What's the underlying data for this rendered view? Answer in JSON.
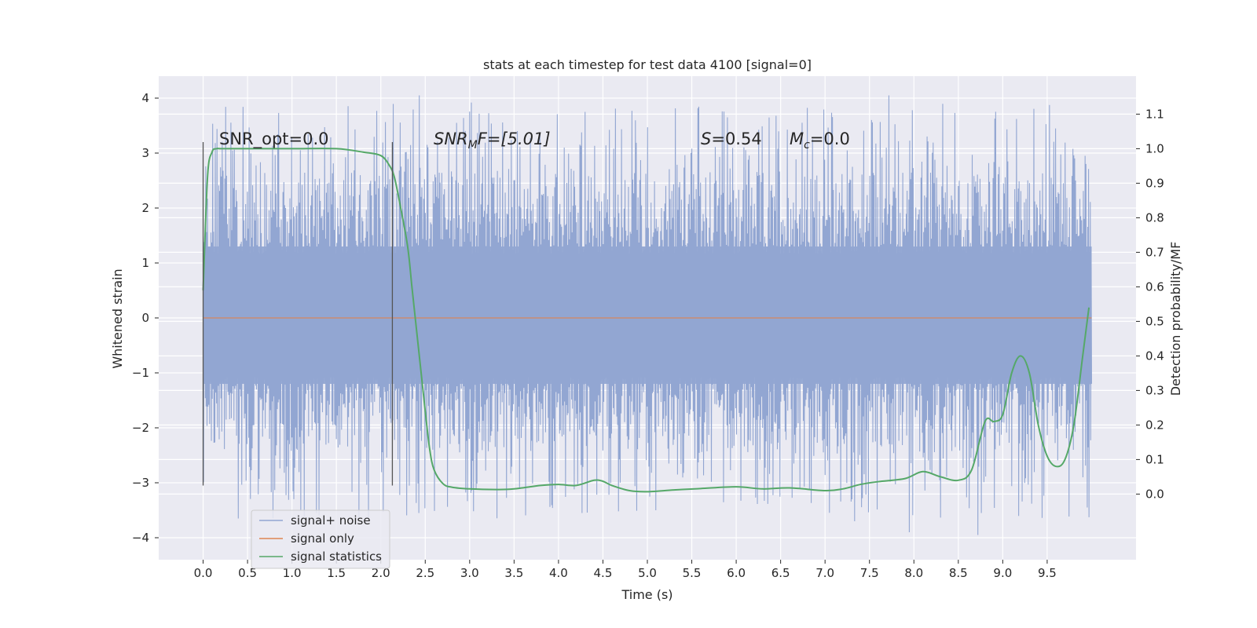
{
  "chart_data": {
    "type": "line",
    "title": "stats at each timestep for test data 4100 [signal=0]",
    "xlabel": "Time (s)",
    "ylabel": "Whitened strain",
    "ylabel_right": "Detection probability/MF",
    "xlim": [
      -0.5,
      10.5
    ],
    "ylim": [
      -4.4,
      4.4
    ],
    "ylim_right": [
      -0.19,
      1.21
    ],
    "x_ticks": [
      0.0,
      0.5,
      1.0,
      1.5,
      2.0,
      2.5,
      3.0,
      3.5,
      4.0,
      4.5,
      5.0,
      5.5,
      6.0,
      6.5,
      7.0,
      7.5,
      8.0,
      8.5,
      9.0,
      9.5
    ],
    "x_tick_labels": [
      "0.0",
      "0.5",
      "1.0",
      "1.5",
      "2.0",
      "2.5",
      "3.0",
      "3.5",
      "4.0",
      "4.5",
      "5.0",
      "5.5",
      "6.0",
      "6.5",
      "7.0",
      "7.5",
      "8.0",
      "8.5",
      "9.0",
      "9.5"
    ],
    "y_ticks": [
      4,
      3,
      2,
      1,
      0,
      -1,
      -2,
      -3,
      -4
    ],
    "y_tick_labels": [
      "4",
      "3",
      "2",
      "1",
      "0",
      "−1",
      "−2",
      "−3",
      "−4"
    ],
    "y_right_ticks": [
      1.1,
      1.0,
      0.9,
      0.8,
      0.7,
      0.6,
      0.5,
      0.4,
      0.3,
      0.2,
      0.1,
      0.0
    ],
    "y_right_tick_labels": [
      "1.1",
      "1.0",
      "0.9",
      "0.8",
      "0.7",
      "0.6",
      "0.5",
      "0.4",
      "0.3",
      "0.2",
      "0.1",
      "0.0"
    ],
    "grid": true,
    "legend_position": "bottom-left",
    "annotations": {
      "snr_opt": "SNR_opt=0.0",
      "snr_mf_sym": "SNR",
      "snr_mf_sub": "M",
      "snr_mf_rest": "F=[5.01]",
      "s_sym": "S",
      "s_rest": "=0.54",
      "mc_sym": "M",
      "mc_sub": "c",
      "mc_rest": "=0.0"
    },
    "vertical_markers": [
      {
        "x": 0.0,
        "ymin": -3.05,
        "ymax": 3.2
      },
      {
        "x": 2.13,
        "ymin": -3.05,
        "ymax": 3.2
      }
    ],
    "series": [
      {
        "name": "signal+ noise",
        "color": "#92a6d2",
        "axis": "left",
        "x_range": [
          0.0,
          10.0
        ],
        "sample_count": 2048,
        "envelope_upper": 1.3,
        "envelope_lower": -1.2,
        "max": 4.05,
        "min": -3.95,
        "peaks": [
          {
            "x": 2.43,
            "y": 4.05
          },
          {
            "x": 7.72,
            "y": 4.05
          },
          {
            "x": 4.3,
            "y": 3.75
          },
          {
            "x": 5.9,
            "y": 3.65
          },
          {
            "x": 2.43,
            "y": -3.55
          },
          {
            "x": 8.72,
            "y": -3.95
          },
          {
            "x": 7.95,
            "y": -3.9
          },
          {
            "x": 7.33,
            "y": -3.7
          },
          {
            "x": 0.4,
            "y": -3.65
          }
        ]
      },
      {
        "name": "signal only",
        "color": "#dd8452",
        "axis": "left",
        "x": [
          0.0,
          10.0
        ],
        "y": [
          0.0,
          0.0
        ]
      },
      {
        "name": "signal statistics",
        "color": "#55a868",
        "axis": "right",
        "x": [
          0.0,
          0.05,
          0.1,
          0.15,
          0.2,
          0.3,
          0.5,
          1.0,
          1.5,
          1.8,
          2.0,
          2.1,
          2.15,
          2.2,
          2.3,
          2.35,
          2.4,
          2.45,
          2.5,
          2.55,
          2.6,
          2.7,
          2.8,
          3.0,
          3.3,
          3.5,
          3.8,
          4.0,
          4.2,
          4.4,
          4.5,
          4.6,
          4.8,
          5.0,
          5.3,
          5.6,
          6.0,
          6.3,
          6.6,
          7.0,
          7.2,
          7.4,
          7.6,
          7.9,
          8.1,
          8.3,
          8.5,
          8.65,
          8.8,
          8.9,
          9.0,
          9.1,
          9.2,
          9.3,
          9.4,
          9.5,
          9.6,
          9.7,
          9.8,
          9.9,
          9.97
        ],
        "y": [
          0.59,
          0.92,
          0.99,
          1.0,
          1.0,
          1.0,
          1.0,
          1.0,
          1.0,
          0.99,
          0.98,
          0.95,
          0.92,
          0.86,
          0.72,
          0.6,
          0.48,
          0.36,
          0.24,
          0.13,
          0.07,
          0.03,
          0.02,
          0.015,
          0.013,
          0.015,
          0.025,
          0.028,
          0.025,
          0.04,
          0.037,
          0.025,
          0.01,
          0.007,
          0.012,
          0.016,
          0.021,
          0.015,
          0.018,
          0.01,
          0.015,
          0.028,
          0.036,
          0.045,
          0.065,
          0.05,
          0.04,
          0.07,
          0.21,
          0.21,
          0.23,
          0.35,
          0.4,
          0.35,
          0.2,
          0.11,
          0.08,
          0.1,
          0.2,
          0.4,
          0.54
        ]
      }
    ]
  }
}
